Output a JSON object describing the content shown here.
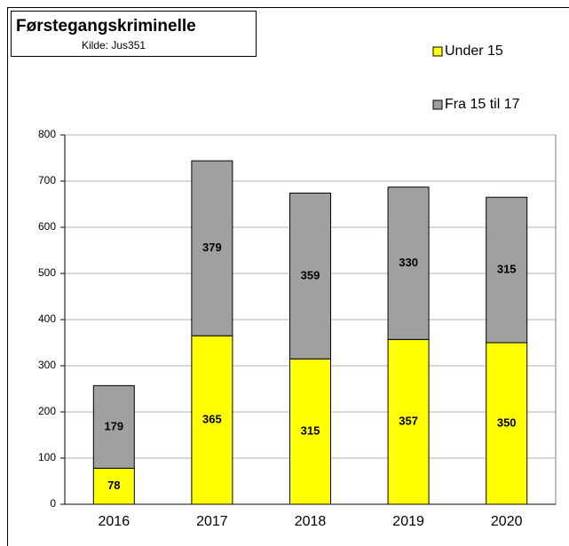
{
  "chart_data": {
    "type": "stacked_bar",
    "title": "Førstegangskriminelle",
    "subtitle": "Kilde: Jus351",
    "categories": [
      "2016",
      "2017",
      "2018",
      "2019",
      "2020"
    ],
    "series": [
      {
        "name": "Under 15",
        "color": "#ffff00",
        "values": [
          78,
          365,
          315,
          357,
          350
        ]
      },
      {
        "name": "Fra 15 til 17",
        "color": "#a0a0a0",
        "values": [
          179,
          379,
          359,
          330,
          315
        ]
      }
    ],
    "ylim": [
      0,
      800
    ],
    "yticks": [
      0,
      100,
      200,
      300,
      400,
      500,
      600,
      700,
      800
    ],
    "grid": true,
    "legend": "top-right"
  }
}
